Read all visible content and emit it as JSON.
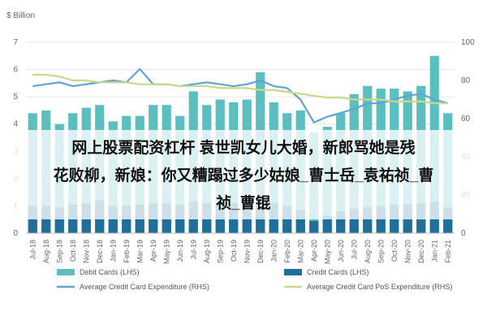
{
  "overlay": {
    "line1": "网上股票配资杠杆 袁世凯女儿大婚，新郎骂她是残",
    "line2": "花败柳，新娘：你又糟蹋过多少姑娘_曹士岳_袁祐祯_曹",
    "line3": "祯_曹锟"
  },
  "chart_data": {
    "type": "bar",
    "left_axis_unit": "$ Billion",
    "left_ylim": [
      0,
      7
    ],
    "left_ticks": [
      "0",
      "1",
      "2",
      "3",
      "4",
      "5",
      "6",
      "7"
    ],
    "right_ylim": [
      0,
      100
    ],
    "right_ticks": [
      "0",
      "20",
      "40",
      "60",
      "80",
      "100"
    ],
    "categories": [
      "Jul-18",
      "Aug-18",
      "Sep-18",
      "Oct-18",
      "Nov-18",
      "Dec-18",
      "Jan-19",
      "Feb-19",
      "Mar-19",
      "Apr-19",
      "May-19",
      "Jun-19",
      "Jul-19",
      "Aug-19",
      "Sep-19",
      "Oct-19",
      "Nov-19",
      "Dec-19",
      "Jan-20",
      "Feb-20",
      "Mar-20",
      "Apr-20",
      "May-20",
      "Jun-20",
      "Jul-20",
      "Aug-20",
      "Sep-20",
      "Oct-20",
      "Nov-20",
      "Dec-20",
      "Jan-21",
      "Feb-21"
    ],
    "series": [
      {
        "name": "Debit Cards (LHS)",
        "axis": "left",
        "type": "bar",
        "color": "#5bbfbf",
        "values": [
          4.4,
          4.5,
          4.0,
          4.4,
          4.6,
          4.7,
          4.1,
          4.3,
          4.3,
          4.7,
          4.7,
          4.3,
          5.2,
          4.7,
          4.9,
          4.8,
          4.9,
          5.9,
          4.8,
          4.4,
          4.5,
          3.7,
          3.9,
          4.4,
          5.1,
          5.4,
          5.3,
          5.3,
          5.2,
          5.4,
          6.5,
          4.4
        ]
      },
      {
        "name": "Credit Cards (LHS)",
        "axis": "left",
        "type": "bar",
        "color": "#1f6f9a",
        "values": [
          1.0,
          1.0,
          0.95,
          1.05,
          1.1,
          1.2,
          1.0,
          1.0,
          1.05,
          1.1,
          1.1,
          1.05,
          1.15,
          1.1,
          1.1,
          1.1,
          1.15,
          1.25,
          1.1,
          1.0,
          0.85,
          0.45,
          0.65,
          0.8,
          0.9,
          0.95,
          1.0,
          1.05,
          1.05,
          1.1,
          1.15,
          0.95
        ]
      },
      {
        "name": "Average Credit Card Expenditure (RHS)",
        "axis": "right",
        "type": "line",
        "color": "#5fa3d6",
        "values": [
          77,
          78,
          79,
          77,
          78,
          79,
          80,
          79,
          86,
          78,
          78,
          77,
          78,
          79,
          78,
          77,
          78,
          80,
          77,
          76,
          70,
          58,
          61,
          63,
          65,
          68,
          68,
          70,
          72,
          73,
          70,
          68
        ]
      },
      {
        "name": "Average Credit Card PoS Expenditure (RHS)",
        "axis": "right",
        "type": "line",
        "color": "#c9d889",
        "values": [
          83,
          83,
          82,
          80,
          80,
          79,
          79,
          79,
          78,
          78,
          78,
          77,
          77,
          77,
          76,
          76,
          76,
          75,
          75,
          74,
          73,
          72,
          71,
          71,
          70,
          70,
          70,
          69,
          69,
          69,
          68,
          68
        ]
      }
    ],
    "legend_placement": "bottom"
  }
}
